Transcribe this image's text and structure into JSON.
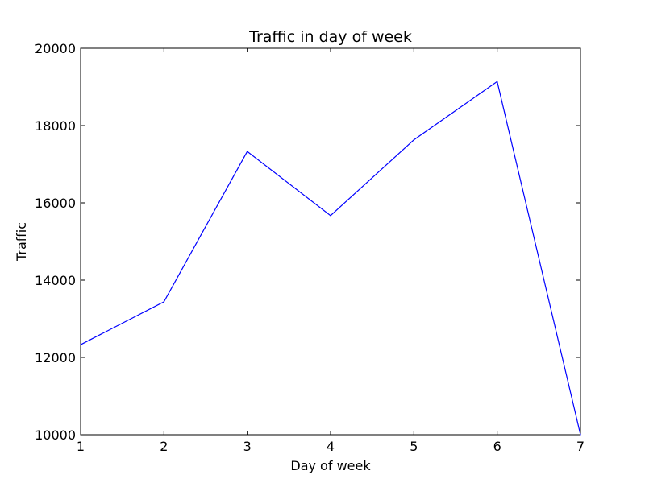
{
  "chart_data": {
    "type": "line",
    "title": "Traffic in day of week",
    "xlabel": "Day of week",
    "ylabel": "Traffic",
    "x": [
      1,
      2,
      3,
      4,
      5,
      6,
      7
    ],
    "series": [
      {
        "values": [
          12330,
          13440,
          17330,
          15670,
          17630,
          19140,
          10000
        ]
      }
    ],
    "xlim": [
      1,
      7
    ],
    "ylim": [
      10000,
      20000
    ],
    "xticks": [
      1,
      2,
      3,
      4,
      5,
      6,
      7
    ],
    "yticks": [
      10000,
      12000,
      14000,
      16000,
      18000,
      20000
    ],
    "grid": false,
    "line_color": "#0000ff"
  }
}
